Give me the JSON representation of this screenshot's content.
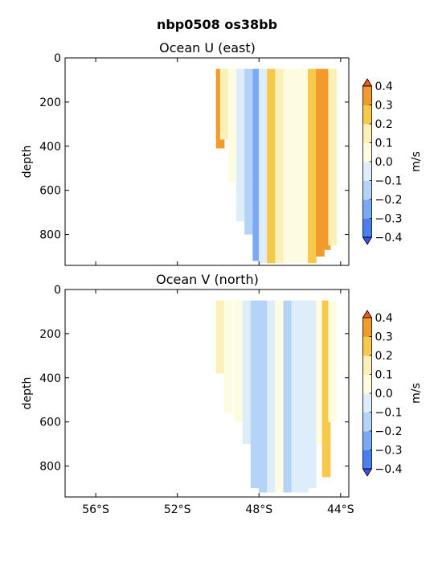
{
  "figure_title": "nbp0508 os38bb",
  "chart_data": [
    {
      "type": "heatmap",
      "title": "Ocean U (east)",
      "ylabel": "depth",
      "y_inverted": true,
      "ylim": [
        940,
        0
      ],
      "yticks": [
        0,
        200,
        400,
        600,
        800
      ],
      "xlim": [
        -57.5,
        -43.6
      ],
      "xticks": [
        -56,
        -52,
        -48,
        -44
      ],
      "xticklabels": [
        "56°S",
        "52°S",
        "48°S",
        "44°S"
      ],
      "colorbar": {
        "label": "m/s",
        "levels": [
          -0.4,
          -0.3,
          -0.2,
          -0.1,
          0.0,
          0.1,
          0.2,
          0.3,
          0.4
        ],
        "ticklabels": [
          "0.4",
          "0.3",
          "0.2",
          "0.1",
          "0.0",
          "−0.1",
          "−0.2",
          "−0.3",
          "−0.4"
        ],
        "colors": [
          "#3b4ef0",
          "#4a7ff0",
          "#7aaaf5",
          "#b3d3f7",
          "#ddeefa",
          "#fdfce0",
          "#fbf1b8",
          "#f7c94a",
          "#f39a2c",
          "#ee5a1a"
        ]
      },
      "profiles": [
        {
          "lon": -49.9,
          "bottom": 410,
          "value": 0.3
        },
        {
          "lon": -49.7,
          "bottom": 370,
          "value": 0.15
        },
        {
          "lon": -49.3,
          "bottom": 560,
          "value": 0.05
        },
        {
          "lon": -48.9,
          "bottom": 740,
          "value": -0.05
        },
        {
          "lon": -48.5,
          "bottom": 800,
          "value": -0.15
        },
        {
          "lon": -48.1,
          "bottom": 920,
          "value": -0.3
        },
        {
          "lon": -47.8,
          "bottom": 930,
          "value": -0.1
        },
        {
          "lon": -47.4,
          "bottom": 930,
          "value": 0.2
        },
        {
          "lon": -47.0,
          "bottom": 930,
          "value": 0.1
        },
        {
          "lon": -46.6,
          "bottom": 930,
          "value": 0.05
        },
        {
          "lon": -46.2,
          "bottom": 930,
          "value": 0.08
        },
        {
          "lon": -45.8,
          "bottom": 930,
          "value": 0.02
        },
        {
          "lon": -45.4,
          "bottom": 930,
          "value": 0.25
        },
        {
          "lon": -45.0,
          "bottom": 900,
          "value": 0.35
        },
        {
          "lon": -44.7,
          "bottom": 870,
          "value": 0.3
        },
        {
          "lon": -44.4,
          "bottom": 850,
          "value": 0.15
        }
      ]
    },
    {
      "type": "heatmap",
      "title": "Ocean V (north)",
      "ylabel": "depth",
      "y_inverted": true,
      "ylim": [
        940,
        0
      ],
      "yticks": [
        0,
        200,
        400,
        600,
        800
      ],
      "xlim": [
        -57.5,
        -43.6
      ],
      "xticks": [
        -56,
        -52,
        -48,
        -44
      ],
      "xticklabels": [
        "56°S",
        "52°S",
        "48°S",
        "44°S"
      ],
      "colorbar": {
        "label": "m/s",
        "levels": [
          -0.4,
          -0.3,
          -0.2,
          -0.1,
          0.0,
          0.1,
          0.2,
          0.3,
          0.4
        ],
        "ticklabels": [
          "0.4",
          "0.3",
          "0.2",
          "0.1",
          "0.0",
          "−0.1",
          "−0.2",
          "−0.3",
          "−0.4"
        ],
        "colors": [
          "#3b4ef0",
          "#4a7ff0",
          "#7aaaf5",
          "#b3d3f7",
          "#ddeefa",
          "#fdfce0",
          "#fbf1b8",
          "#f7c94a",
          "#f39a2c",
          "#ee5a1a"
        ]
      },
      "profiles": [
        {
          "lon": -49.9,
          "bottom": 380,
          "value": 0.15
        },
        {
          "lon": -49.5,
          "bottom": 560,
          "value": 0.05
        },
        {
          "lon": -49.0,
          "bottom": 600,
          "value": 0.08
        },
        {
          "lon": -48.6,
          "bottom": 700,
          "value": -0.05
        },
        {
          "lon": -48.2,
          "bottom": 900,
          "value": -0.15
        },
        {
          "lon": -47.8,
          "bottom": 920,
          "value": -0.12
        },
        {
          "lon": -47.4,
          "bottom": 920,
          "value": -0.03
        },
        {
          "lon": -47.0,
          "bottom": 920,
          "value": 0.05
        },
        {
          "lon": -46.6,
          "bottom": 920,
          "value": -0.12
        },
        {
          "lon": -46.2,
          "bottom": 920,
          "value": -0.1
        },
        {
          "lon": -45.8,
          "bottom": 920,
          "value": -0.04
        },
        {
          "lon": -45.4,
          "bottom": 900,
          "value": -0.06
        },
        {
          "lon": -45.0,
          "bottom": 700,
          "value": 0.05
        },
        {
          "lon": -44.7,
          "bottom": 850,
          "value": 0.2
        },
        {
          "lon": -44.4,
          "bottom": 600,
          "value": 0.08
        }
      ]
    }
  ]
}
